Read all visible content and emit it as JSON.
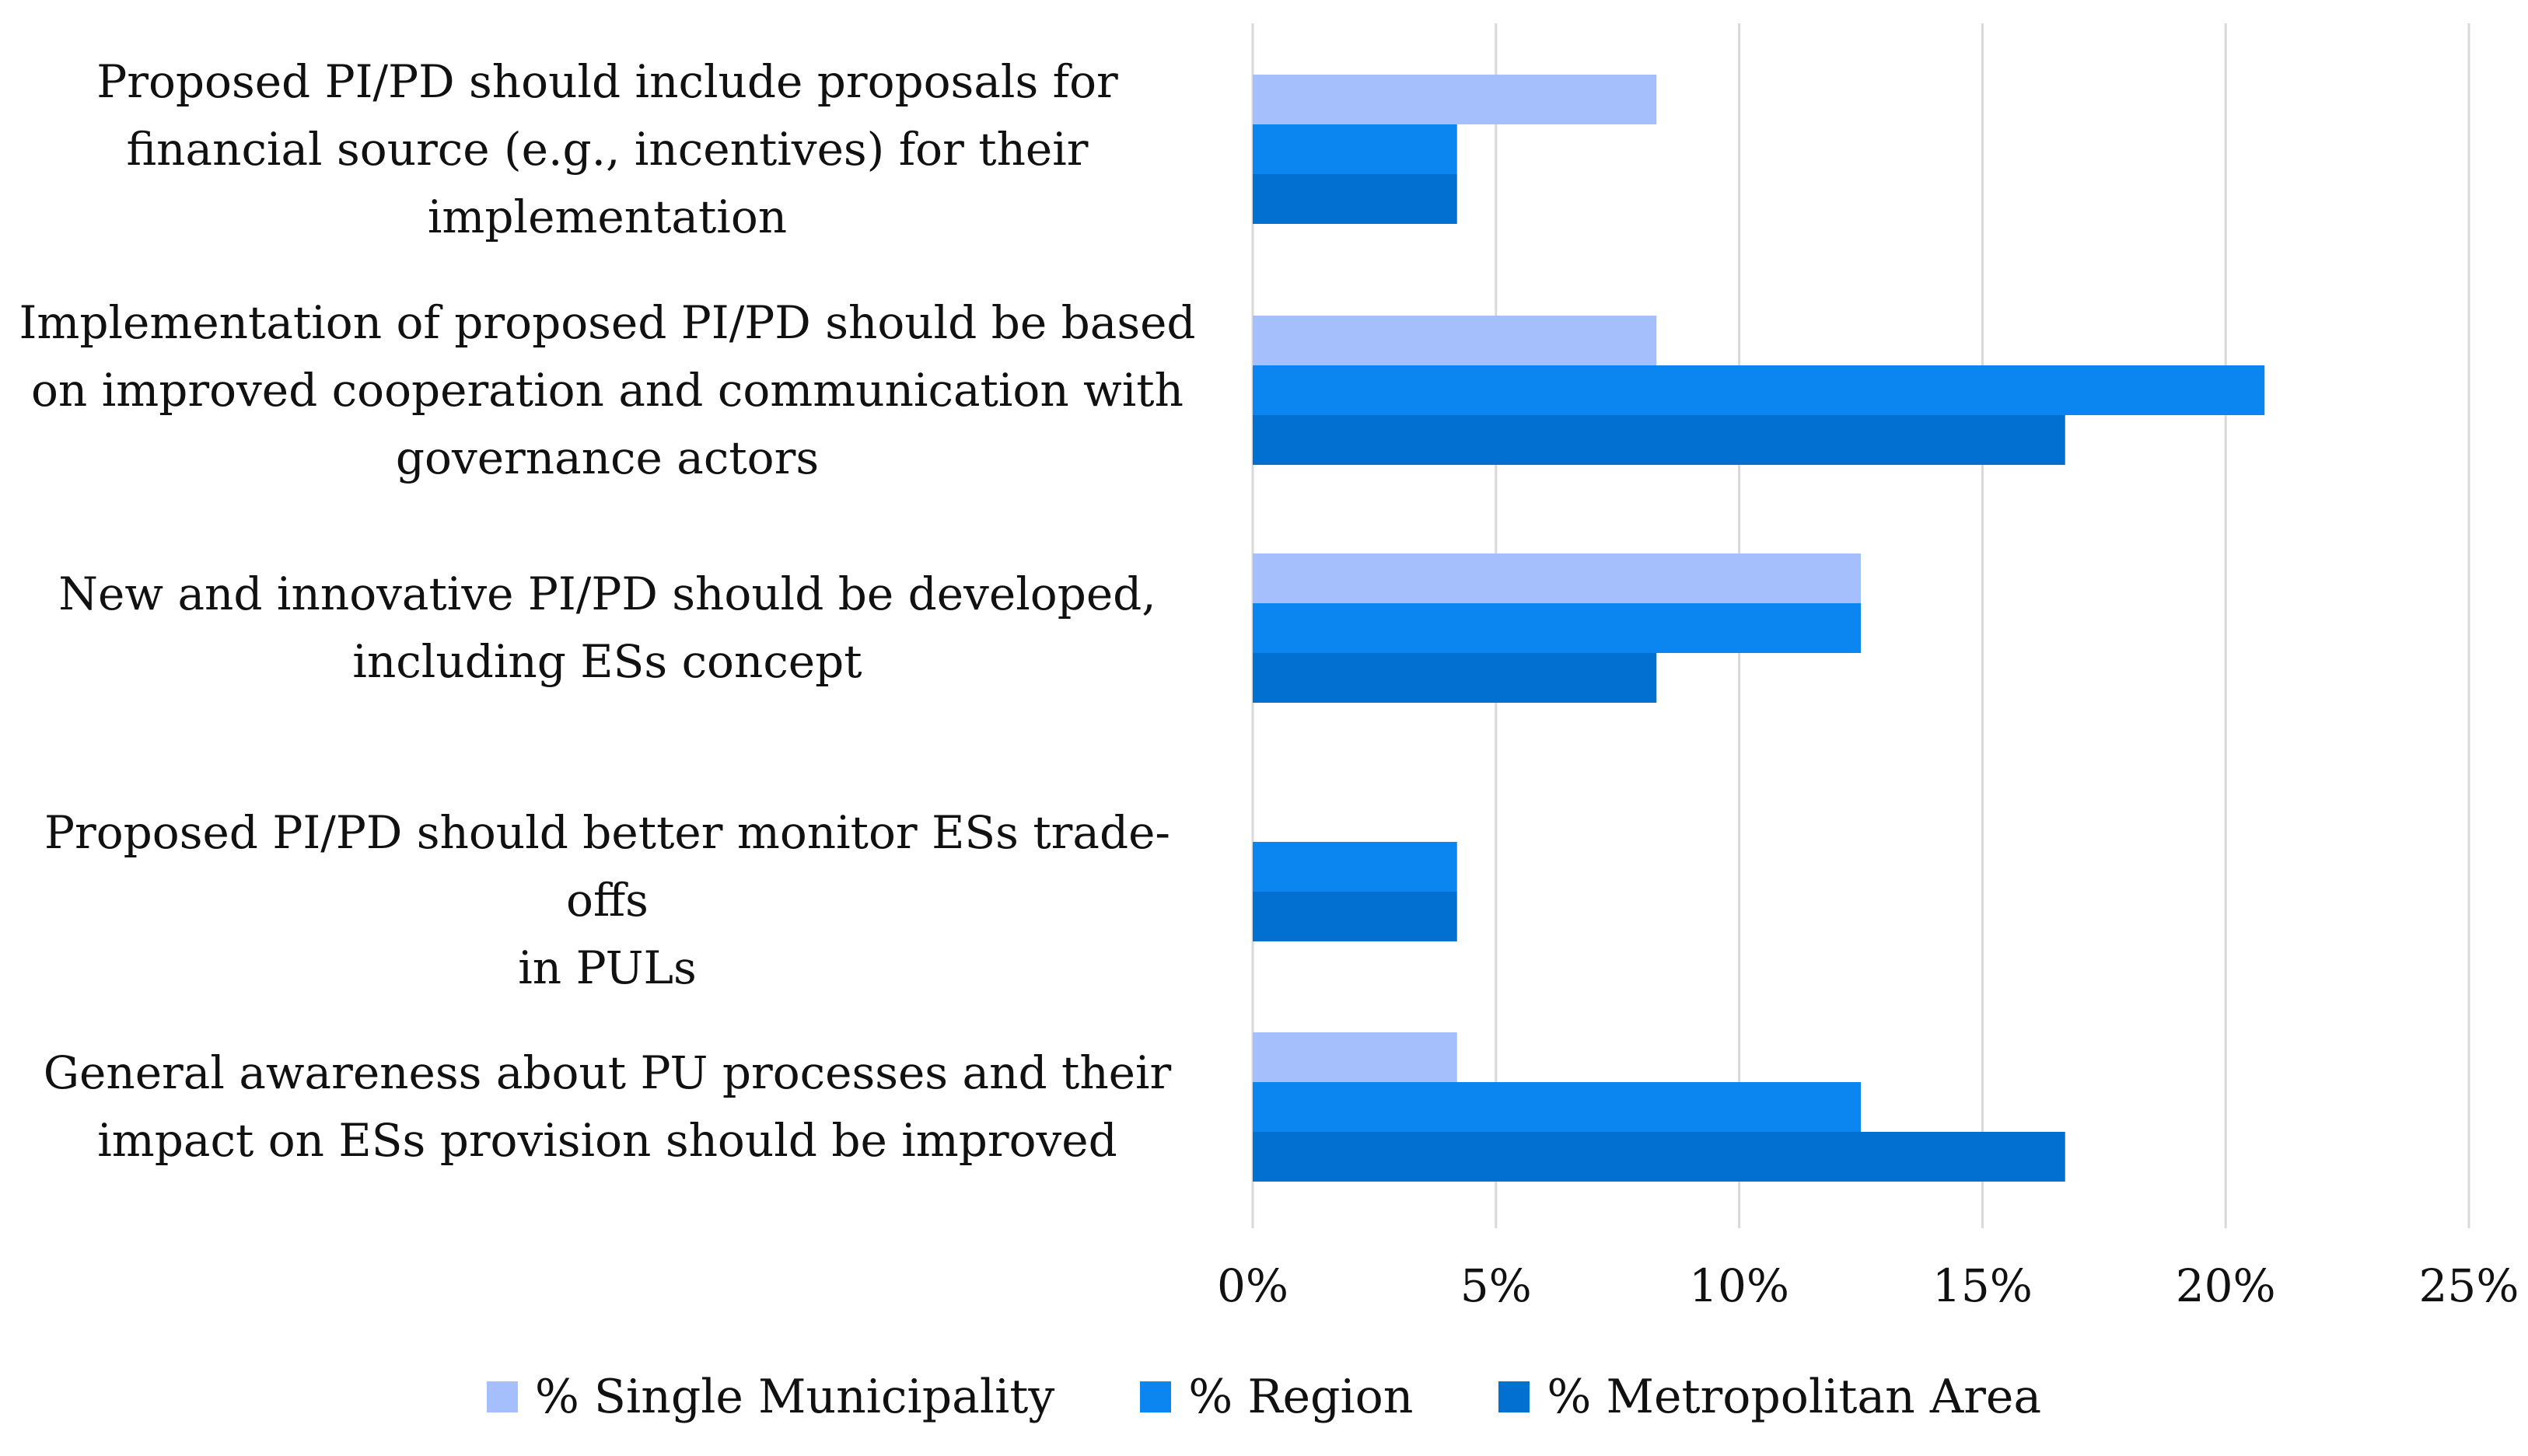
{
  "chart_data": {
    "type": "bar",
    "orientation": "horizontal",
    "title": "",
    "xlabel": "",
    "ylabel": "",
    "xlim": [
      0,
      25
    ],
    "x_ticks": [
      0,
      5,
      10,
      15,
      20,
      25
    ],
    "x_tick_labels": [
      "0%",
      "5%",
      "10%",
      "15%",
      "20%",
      "25%"
    ],
    "grid": true,
    "legend_position": "bottom",
    "categories": [
      "Proposed PI/PD should include proposals for financial source (e.g., incentives) for their implementation",
      "Implementation of proposed PI/PD should be based on improved cooperation and communication with governance actors",
      "New and innovative PI/PD should be developed, including ESs concept",
      "Proposed PI/PD should better monitor ESs trade-offs in PULs",
      "General awareness about PU processes and their impact on ESs provision should be improved"
    ],
    "category_lines": [
      [
        "Proposed PI/PD should include proposals for",
        "financial source (e.g., incentives) for their",
        "implementation"
      ],
      [
        "Implementation of proposed PI/PD should be based",
        "on improved cooperation and communication with",
        "governance actors"
      ],
      [
        "New and innovative PI/PD should be developed,",
        "including ESs concept"
      ],
      [
        "Proposed PI/PD should better monitor ESs trade-offs",
        "in PULs"
      ],
      [
        "General awareness about PU processes and their",
        "impact on ESs provision should be improved"
      ]
    ],
    "series": [
      {
        "name": "% Single Municipality",
        "color": "#a4bffb",
        "values": [
          8.3,
          8.3,
          12.5,
          0,
          4.2
        ]
      },
      {
        "name": "% Region",
        "color": "#0b85ef",
        "values": [
          4.2,
          20.8,
          12.5,
          4.2,
          12.5
        ]
      },
      {
        "name": "% Metropolitan Area",
        "color": "#0270d0",
        "values": [
          4.2,
          16.7,
          8.3,
          4.2,
          16.7
        ]
      }
    ]
  }
}
